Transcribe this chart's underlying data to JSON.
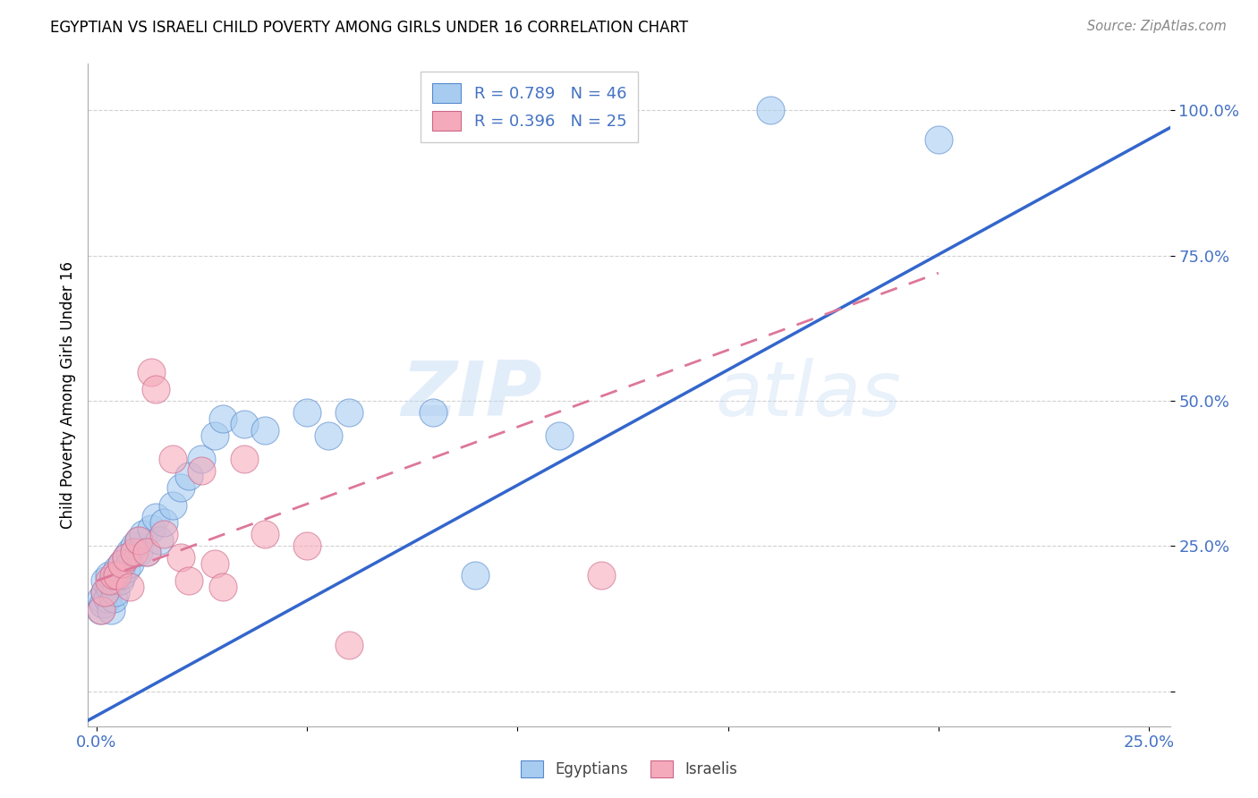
{
  "title": "EGYPTIAN VS ISRAELI CHILD POVERTY AMONG GIRLS UNDER 16 CORRELATION CHART",
  "source": "Source: ZipAtlas.com",
  "ylabel": "Child Poverty Among Girls Under 16",
  "xlim": [
    -0.002,
    0.255
  ],
  "ylim": [
    -0.06,
    1.08
  ],
  "yticks": [
    0.0,
    0.25,
    0.5,
    0.75,
    1.0
  ],
  "ytick_labels": [
    "",
    "25.0%",
    "50.0%",
    "75.0%",
    "100.0%"
  ],
  "xticks": [
    0.0,
    0.05,
    0.1,
    0.15,
    0.2,
    0.25
  ],
  "xtick_labels": [
    "0.0%",
    "",
    "",
    "",
    "",
    "25.0%"
  ],
  "watermark_part1": "ZIP",
  "watermark_part2": "atlas",
  "egyptians_color": "#A8CCF0",
  "israelis_color": "#F5AABB",
  "trend_egyptian_color": "#3366CC",
  "trend_israeli_color": "#DD7799",
  "egyptians_edge": "#5588CC",
  "israelis_edge": "#CC6688",
  "legend_R_egyptian": "R = 0.789",
  "legend_N_egyptian": "N = 46",
  "legend_R_israeli": "R = 0.396",
  "legend_N_israeli": "N = 25",
  "eg_trend_x0": -0.002,
  "eg_trend_y0": -0.05,
  "eg_trend_x1": 0.255,
  "eg_trend_y1": 0.97,
  "il_trend_x0": 0.0,
  "il_trend_y0": 0.19,
  "il_trend_x1": 0.2,
  "il_trend_y1": 0.72,
  "egyptians_x": [
    0.0008,
    0.001,
    0.0015,
    0.002,
    0.002,
    0.0025,
    0.003,
    0.003,
    0.0035,
    0.004,
    0.004,
    0.0045,
    0.005,
    0.005,
    0.0055,
    0.006,
    0.006,
    0.007,
    0.007,
    0.008,
    0.008,
    0.009,
    0.01,
    0.01,
    0.011,
    0.012,
    0.013,
    0.014,
    0.015,
    0.016,
    0.018,
    0.02,
    0.022,
    0.025,
    0.028,
    0.03,
    0.035,
    0.04,
    0.05,
    0.055,
    0.06,
    0.08,
    0.09,
    0.11,
    0.16,
    0.2
  ],
  "egyptians_y": [
    0.14,
    0.16,
    0.15,
    0.17,
    0.19,
    0.16,
    0.18,
    0.2,
    0.14,
    0.16,
    0.19,
    0.17,
    0.2,
    0.21,
    0.19,
    0.22,
    0.2,
    0.23,
    0.21,
    0.24,
    0.22,
    0.25,
    0.26,
    0.24,
    0.27,
    0.24,
    0.28,
    0.3,
    0.26,
    0.29,
    0.32,
    0.35,
    0.37,
    0.4,
    0.44,
    0.47,
    0.46,
    0.45,
    0.48,
    0.44,
    0.48,
    0.48,
    0.2,
    0.44,
    1.0,
    0.95
  ],
  "israelis_x": [
    0.001,
    0.002,
    0.003,
    0.004,
    0.005,
    0.006,
    0.007,
    0.008,
    0.009,
    0.01,
    0.012,
    0.013,
    0.014,
    0.016,
    0.018,
    0.02,
    0.022,
    0.025,
    0.028,
    0.03,
    0.035,
    0.04,
    0.05,
    0.06,
    0.12
  ],
  "israelis_y": [
    0.14,
    0.17,
    0.19,
    0.2,
    0.2,
    0.22,
    0.23,
    0.18,
    0.24,
    0.26,
    0.24,
    0.55,
    0.52,
    0.27,
    0.4,
    0.23,
    0.19,
    0.38,
    0.22,
    0.18,
    0.4,
    0.27,
    0.25,
    0.08,
    0.2
  ]
}
